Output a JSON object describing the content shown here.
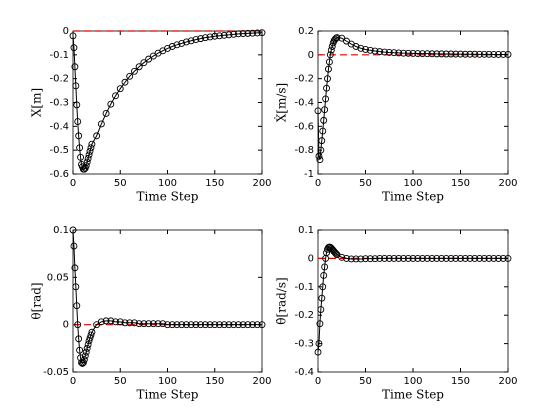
{
  "chart_data": [
    {
      "type": "line",
      "x_label": "Time Step",
      "y_label": "X[m]",
      "x": [
        0,
        1,
        2,
        3,
        4,
        5,
        6,
        7,
        8,
        9,
        10,
        11,
        12,
        13,
        14,
        15,
        16,
        17,
        18,
        19,
        20,
        25,
        30,
        35,
        40,
        45,
        50,
        55,
        60,
        65,
        70,
        75,
        80,
        85,
        90,
        95,
        100,
        105,
        110,
        115,
        120,
        125,
        130,
        135,
        140,
        145,
        150,
        155,
        160,
        165,
        170,
        175,
        180,
        185,
        190,
        195,
        200
      ],
      "series": [
        {
          "color": "#000000",
          "marker": "circle",
          "values": [
            -0.02,
            -0.07,
            -0.15,
            -0.23,
            -0.31,
            -0.38,
            -0.44,
            -0.49,
            -0.53,
            -0.56,
            -0.57,
            -0.58,
            -0.58,
            -0.575,
            -0.565,
            -0.55,
            -0.535,
            -0.52,
            -0.505,
            -0.49,
            -0.475,
            -0.44,
            -0.39,
            -0.346,
            -0.307,
            -0.272,
            -0.242,
            -0.215,
            -0.19,
            -0.169,
            -0.15,
            -0.133,
            -0.118,
            -0.105,
            -0.093,
            -0.083,
            -0.073,
            -0.065,
            -0.058,
            -0.052,
            -0.046,
            -0.041,
            -0.036,
            -0.032,
            -0.028,
            -0.025,
            -0.022,
            -0.02,
            -0.018,
            -0.016,
            -0.014,
            -0.012,
            -0.011,
            -0.01,
            -0.009,
            -0.008,
            -0.007
          ]
        }
      ],
      "reference_line": {
        "value": 0,
        "color": "#e00000"
      },
      "xlim": [
        0,
        200
      ],
      "xticks": [
        0,
        50,
        100,
        150,
        200
      ],
      "ylim": [
        -0.6,
        0
      ],
      "yticks": [
        -0.6,
        -0.5,
        -0.4,
        -0.3,
        -0.2,
        -0.1,
        0
      ]
    },
    {
      "type": "line",
      "x_label": "Time Step",
      "y_label": "Ẋ[m/s]",
      "x": [
        0,
        1,
        2,
        3,
        4,
        5,
        6,
        7,
        8,
        9,
        10,
        11,
        12,
        13,
        14,
        15,
        16,
        17,
        18,
        19,
        20,
        25,
        30,
        35,
        40,
        45,
        50,
        55,
        60,
        65,
        70,
        75,
        80,
        85,
        90,
        95,
        100,
        105,
        110,
        115,
        120,
        125,
        130,
        135,
        140,
        145,
        150,
        155,
        160,
        165,
        170,
        175,
        180,
        185,
        190,
        195,
        200
      ],
      "series": [
        {
          "color": "#000000",
          "marker": "circle",
          "values": [
            -0.47,
            -0.85,
            -0.88,
            -0.8,
            -0.72,
            -0.64,
            -0.55,
            -0.46,
            -0.37,
            -0.28,
            -0.2,
            -0.12,
            -0.06,
            0,
            0.04,
            0.07,
            0.1,
            0.12,
            0.13,
            0.14,
            0.145,
            0.14,
            0.115,
            0.09,
            0.07,
            0.055,
            0.045,
            0.038,
            0.032,
            0.027,
            0.023,
            0.02,
            0.018,
            0.016,
            0.014,
            0.013,
            0.012,
            0.011,
            0.01,
            0.01,
            0.009,
            0.008,
            0.008,
            0.007,
            0.007,
            0.006,
            0.006,
            0.005,
            0.005,
            0.005,
            0.004,
            0.004,
            0.004,
            0.003,
            0.003,
            0.003,
            0.003
          ]
        }
      ],
      "reference_line": {
        "value": 0,
        "color": "#e00000"
      },
      "xlim": [
        0,
        200
      ],
      "xticks": [
        0,
        50,
        100,
        150,
        200
      ],
      "ylim": [
        -1,
        0.2
      ],
      "yticks": [
        -1,
        -0.8,
        -0.6,
        -0.4,
        -0.2,
        0,
        0.2
      ]
    },
    {
      "type": "line",
      "x_label": "Time Step",
      "y_label": "θ[rad]",
      "x": [
        0,
        1,
        2,
        3,
        4,
        5,
        6,
        7,
        8,
        9,
        10,
        11,
        12,
        13,
        14,
        15,
        16,
        17,
        18,
        19,
        20,
        25,
        30,
        35,
        40,
        45,
        50,
        55,
        60,
        65,
        70,
        75,
        80,
        85,
        90,
        95,
        100,
        105,
        110,
        115,
        120,
        125,
        130,
        135,
        140,
        145,
        150,
        155,
        160,
        165,
        170,
        175,
        180,
        185,
        190,
        195,
        200
      ],
      "series": [
        {
          "color": "#000000",
          "marker": "circle",
          "values": [
            0.1,
            0.083,
            0.06,
            0.04,
            0.02,
            0,
            -0.015,
            -0.027,
            -0.035,
            -0.04,
            -0.041,
            -0.04,
            -0.037,
            -0.033,
            -0.029,
            -0.025,
            -0.021,
            -0.017,
            -0.014,
            -0.011,
            -0.008,
            0,
            0.003,
            0.004,
            0.004,
            0.003,
            0.003,
            0.002,
            0.002,
            0.002,
            0.001,
            0.001,
            0.001,
            0.001,
            0.001,
            0.001,
            0,
            0,
            0,
            0,
            0,
            0,
            0,
            0,
            0,
            0,
            0,
            0,
            0,
            0,
            0,
            0,
            0,
            0,
            0,
            0,
            0
          ]
        }
      ],
      "reference_line": {
        "value": 0,
        "color": "#e00000"
      },
      "xlim": [
        0,
        200
      ],
      "xticks": [
        0,
        50,
        100,
        150,
        200
      ],
      "ylim": [
        -0.05,
        0.1
      ],
      "yticks": [
        -0.05,
        0,
        0.05,
        0.1
      ]
    },
    {
      "type": "line",
      "x_label": "Time Step",
      "y_label": "θ̇[rad/s]",
      "x": [
        0,
        1,
        2,
        3,
        4,
        5,
        6,
        7,
        8,
        9,
        10,
        11,
        12,
        13,
        14,
        15,
        16,
        17,
        18,
        19,
        20,
        25,
        30,
        35,
        40,
        45,
        50,
        55,
        60,
        65,
        70,
        75,
        80,
        85,
        90,
        95,
        100,
        105,
        110,
        115,
        120,
        125,
        130,
        135,
        140,
        145,
        150,
        155,
        160,
        165,
        170,
        175,
        180,
        185,
        190,
        195,
        200
      ],
      "series": [
        {
          "color": "#000000",
          "marker": "circle",
          "values": [
            -0.33,
            -0.3,
            -0.23,
            -0.18,
            -0.14,
            -0.1,
            -0.06,
            -0.03,
            0,
            0.02,
            0.032,
            0.038,
            0.04,
            0.039,
            0.036,
            0.032,
            0.028,
            0.024,
            0.02,
            0.016,
            0.013,
            0.004,
            0,
            -0.002,
            -0.002,
            -0.002,
            -0.001,
            -0.001,
            -0.001,
            0,
            0,
            0,
            0,
            0,
            0,
            0,
            0,
            0,
            0,
            0,
            0,
            0,
            0,
            0,
            0,
            0,
            0,
            0,
            0,
            0,
            0,
            0,
            0,
            0,
            0,
            0,
            0
          ]
        }
      ],
      "reference_line": {
        "value": 0,
        "color": "#e00000"
      },
      "xlim": [
        0,
        200
      ],
      "xticks": [
        0,
        50,
        100,
        150,
        200
      ],
      "ylim": [
        -0.4,
        0.1
      ],
      "yticks": [
        -0.4,
        -0.3,
        -0.2,
        -0.1,
        0,
        0.1
      ]
    }
  ]
}
